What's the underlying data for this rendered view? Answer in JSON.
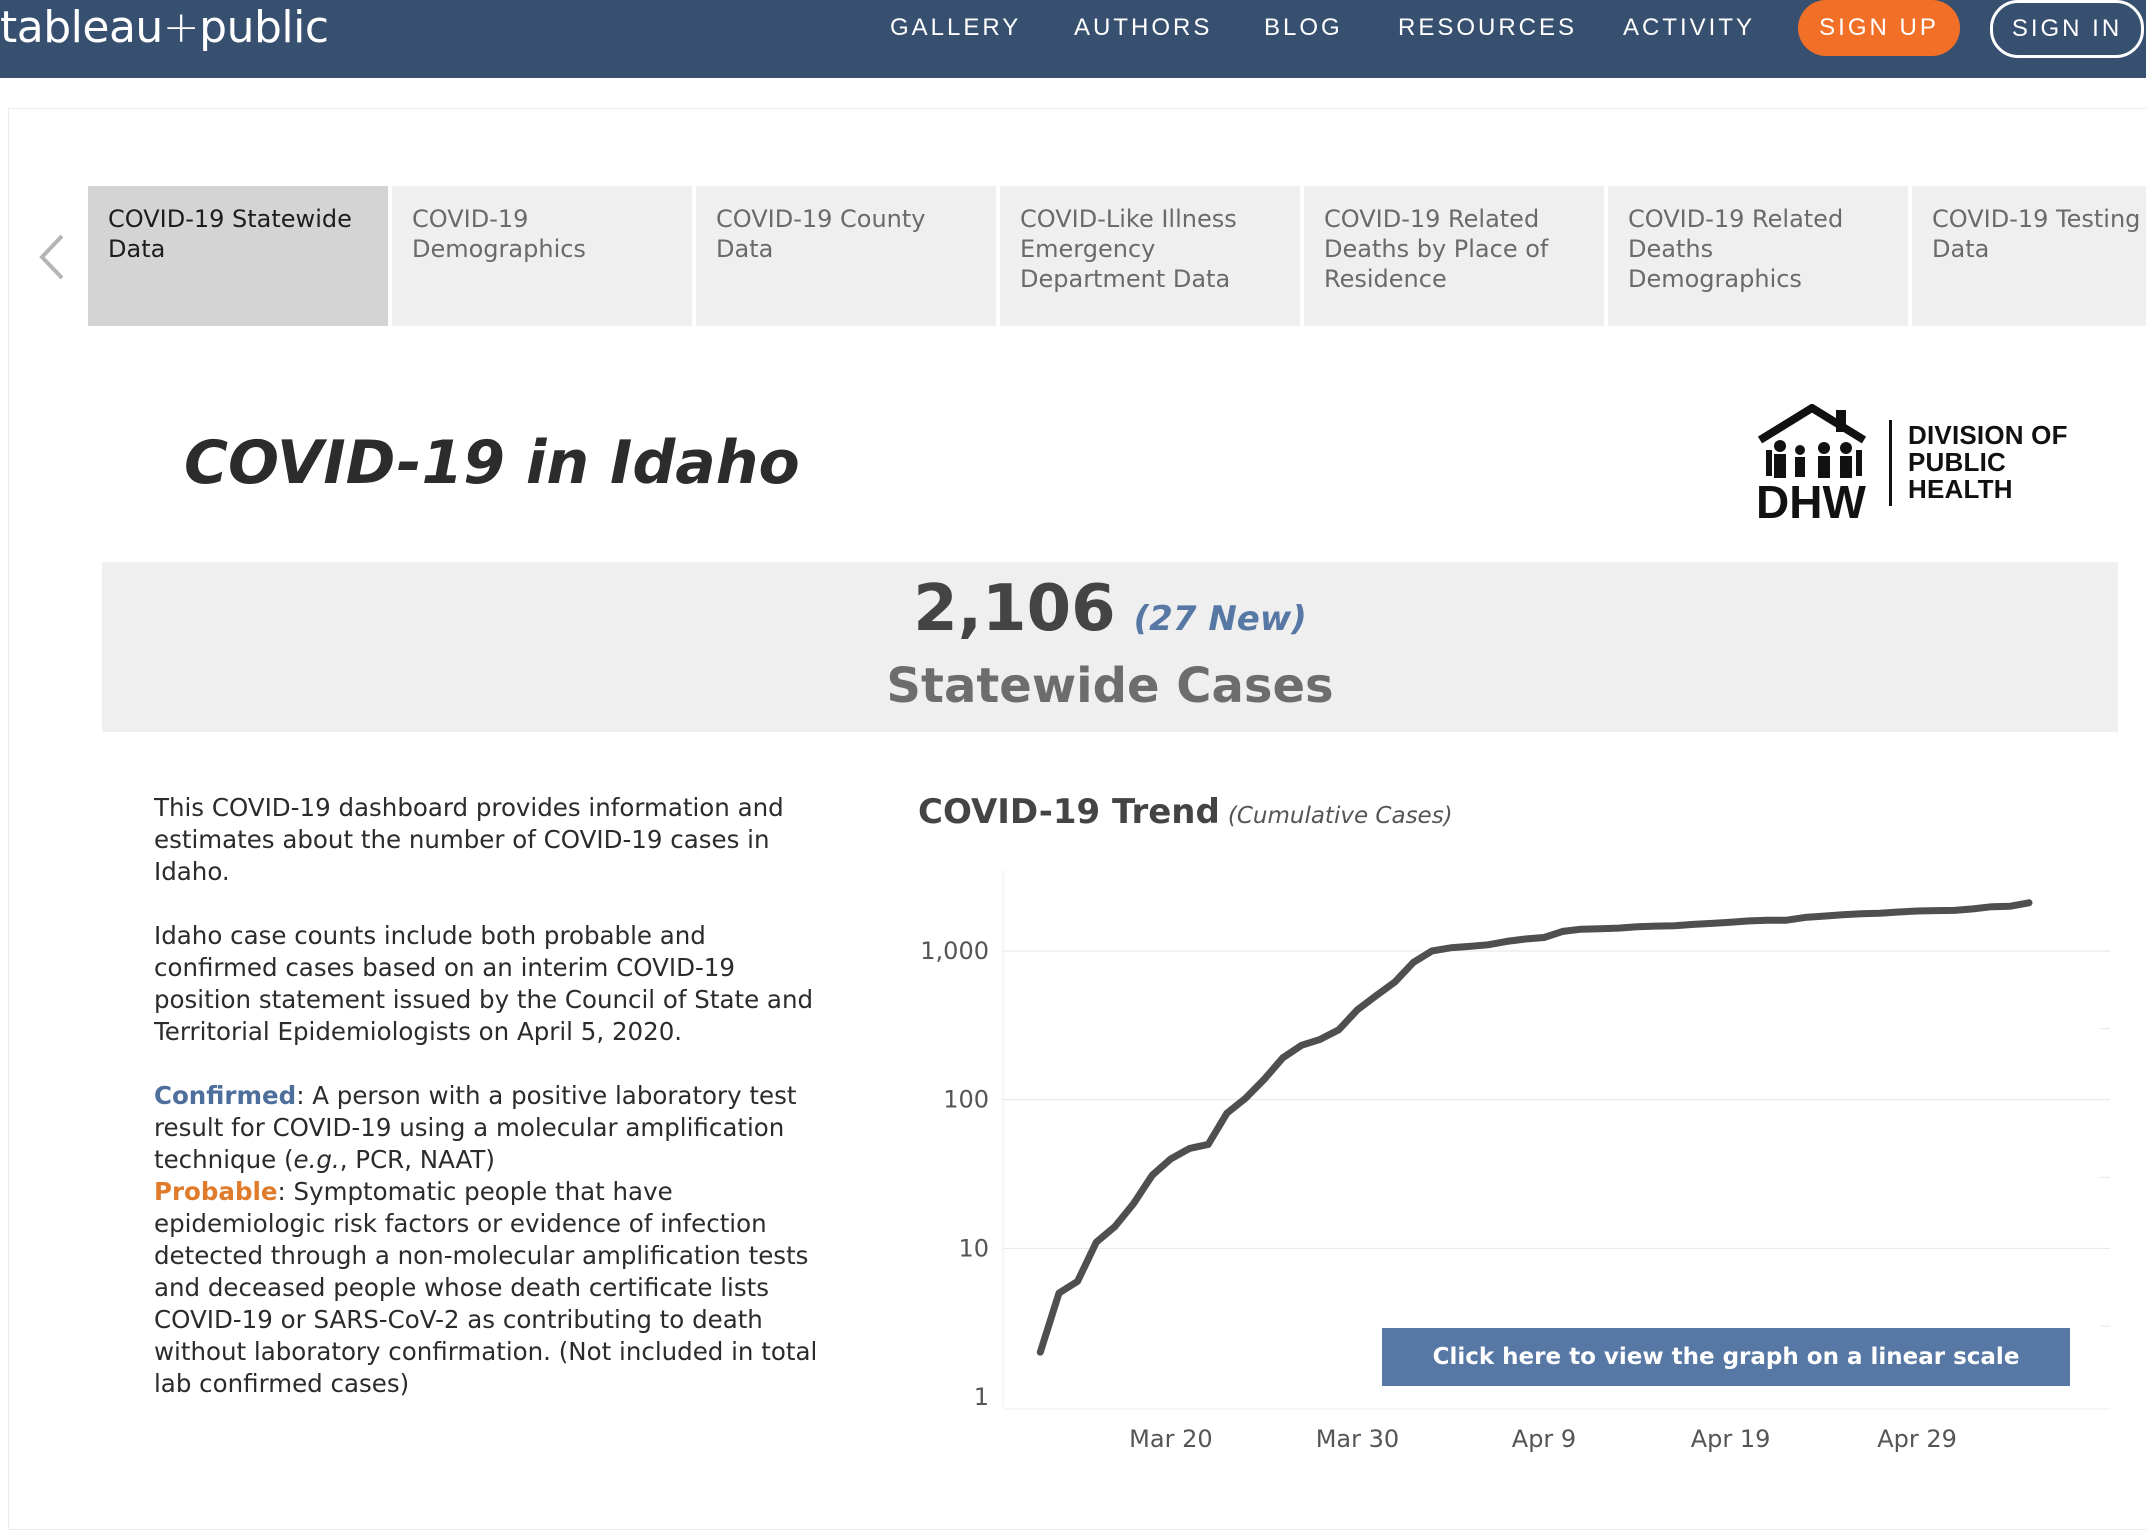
{
  "nav": {
    "brand_left": "tableau",
    "brand_plus": "+",
    "brand_right": "public",
    "links": [
      "GALLERY",
      "AUTHORS",
      "BLOG",
      "RESOURCES",
      "ACTIVITY"
    ],
    "signup_label": "SIGN UP",
    "signin_label": "SIGN IN",
    "colors": {
      "bar": "#385070",
      "signup": "#f26f28"
    }
  },
  "tabs": [
    {
      "label": "COVID-19 Statewide\nData",
      "active": true
    },
    {
      "label": "COVID-19\nDemographics",
      "active": false
    },
    {
      "label": "COVID-19 County\nData",
      "active": false
    },
    {
      "label": "COVID-Like Illness\nEmergency\nDepartment Data",
      "active": false
    },
    {
      "label": "COVID-19 Related\nDeaths by Place of\nResidence",
      "active": false
    },
    {
      "label": "COVID-19 Related\nDeaths\nDemographics",
      "active": false
    },
    {
      "label": "COVID-19 Testing\nData",
      "active": false
    }
  ],
  "dashboard": {
    "title": "COVID-19 in Idaho",
    "logo": {
      "mark": "DHW",
      "lines": [
        "DIVISION OF",
        "PUBLIC",
        "HEALTH"
      ]
    },
    "kpi": {
      "total": "2,106",
      "new": "(27 New)",
      "label": "Statewide Cases",
      "colors": {
        "total": "#444444",
        "new": "#5778a4"
      }
    },
    "description": {
      "p1": "This COVID-19 dashboard provides information and estimates about the number of COVID-19 cases in Idaho.",
      "p2": "Idaho case counts include both probable and confirmed cases based on an interim COVID-19 position statement issued by the Council of State and Territorial Epidemiologists on April 5, 2020.",
      "confirmed_term": "Confirmed",
      "confirmed_def_a": ": A person with a positive laboratory test result for COVID-19 using a molecular amplification technique (",
      "confirmed_def_eg": "e.g.",
      "confirmed_def_b": ", PCR, NAAT)",
      "probable_term": "Probable",
      "probable_def": ": Symptomatic people that have epidemiologic risk factors or evidence of infection detected through a non-molecular amplification tests and deceased people whose death certificate lists  COVID-19 or SARS-CoV-2 as contributing to death without laboratory confirmation. (Not included in total lab confirmed cases)",
      "colors": {
        "confirmed": "#4e6f9c",
        "probable": "#e07b2b"
      }
    },
    "linear_button": "Click here to view the graph on a linear scale"
  },
  "chart_data": {
    "type": "line",
    "title": "COVID-19 Trend",
    "subtitle": "(Cumulative Cases)",
    "xlabel": "",
    "ylabel": "",
    "y_scale": "log",
    "ylim": [
      1,
      3000
    ],
    "xlim": [
      "2020-03-11",
      "2020-05-08"
    ],
    "y_ticks": [
      1,
      10,
      100,
      1000
    ],
    "y_tick_labels": [
      "1",
      "10",
      "100",
      "1,000"
    ],
    "x_ticks": [
      "2020-03-20",
      "2020-03-30",
      "2020-04-09",
      "2020-04-19",
      "2020-04-29"
    ],
    "x_tick_labels": [
      "Mar 20",
      "Mar 30",
      "Apr 9",
      "Apr 19",
      "Apr 29"
    ],
    "grid": true,
    "line_color": "#4f4f4f",
    "series": [
      {
        "x": [
          "2020-03-13",
          "2020-03-14",
          "2020-03-15",
          "2020-03-16",
          "2020-03-17",
          "2020-03-18",
          "2020-03-19",
          "2020-03-20",
          "2020-03-21",
          "2020-03-22",
          "2020-03-23",
          "2020-03-24",
          "2020-03-25",
          "2020-03-26",
          "2020-03-27",
          "2020-03-28",
          "2020-03-29",
          "2020-03-30",
          "2020-03-31",
          "2020-04-01",
          "2020-04-02",
          "2020-04-03",
          "2020-04-04",
          "2020-04-05",
          "2020-04-06",
          "2020-04-07",
          "2020-04-08",
          "2020-04-09",
          "2020-04-10",
          "2020-04-11",
          "2020-04-12",
          "2020-04-13",
          "2020-04-14",
          "2020-04-15",
          "2020-04-16",
          "2020-04-17",
          "2020-04-18",
          "2020-04-19",
          "2020-04-20",
          "2020-04-21",
          "2020-04-22",
          "2020-04-23",
          "2020-04-24",
          "2020-04-25",
          "2020-04-26",
          "2020-04-27",
          "2020-04-28",
          "2020-04-29",
          "2020-04-30",
          "2020-05-01",
          "2020-05-02",
          "2020-05-03",
          "2020-05-04",
          "2020-05-05"
        ],
        "values": [
          2,
          5,
          6,
          11,
          14,
          20,
          31,
          40,
          47,
          50,
          81,
          102,
          137,
          191,
          232,
          254,
          295,
          402,
          500,
          617,
          838,
          1000,
          1050,
          1073,
          1100,
          1159,
          1203,
          1232,
          1354,
          1400,
          1411,
          1425,
          1454,
          1469,
          1475,
          1509,
          1533,
          1560,
          1592,
          1608,
          1609,
          1680,
          1716,
          1750,
          1780,
          1795,
          1828,
          1857,
          1869,
          1874,
          1919,
          1983,
          2000,
          2106
        ]
      }
    ]
  }
}
